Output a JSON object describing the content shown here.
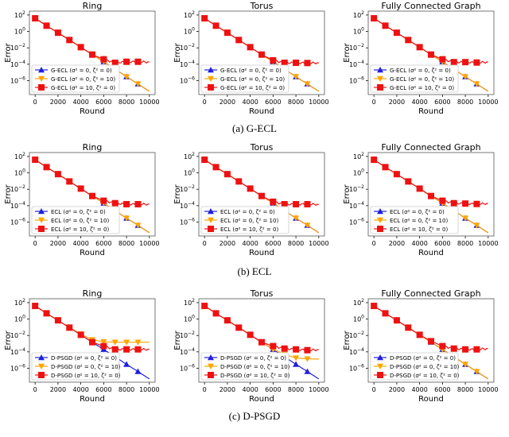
{
  "captions": [
    "(a) G-ECL",
    "(b) ECL",
    "(c) D-PSGD"
  ],
  "colors": {
    "blue": "#1f1fdd",
    "orange": "#ffa500",
    "red": "#ee1111"
  },
  "chart_data": [
    {
      "type": "line",
      "row": 0,
      "title": "Ring",
      "xlabel": "Round",
      "ylabel": "Error",
      "yscale": "log",
      "xlim": [
        -500,
        10500
      ],
      "ylim": [
        2e-08,
        300.0
      ],
      "xticks": [
        0,
        2000,
        4000,
        6000,
        8000,
        10000
      ],
      "yticks": [
        "10^2",
        "10^0",
        "10^-2",
        "10^-4",
        "10^-6"
      ],
      "legend": "lower-left",
      "x": [
        0,
        1000,
        2000,
        3000,
        4000,
        5000,
        6000,
        7000,
        8000,
        9000,
        10000
      ],
      "series": [
        {
          "name": "G-ECL (σ² = 0, ζ² = 0)",
          "color": "blue",
          "marker": "triangle-up",
          "values": [
            40,
            5,
            0.7,
            0.09,
            0.012,
            0.0015,
            0.0002,
            2.5e-05,
            3e-06,
            4e-07,
            5e-08
          ]
        },
        {
          "name": "G-ECL (σ² = 0, ζ² = 10)",
          "color": "orange",
          "marker": "triangle-down",
          "values": [
            40,
            5,
            0.7,
            0.09,
            0.012,
            0.0015,
            0.0002,
            2.5e-05,
            3e-06,
            4e-07,
            5e-08
          ]
        },
        {
          "name": "G-ECL (σ² = 10, ζ² = 0)",
          "color": "red",
          "marker": "square",
          "values": [
            40,
            5,
            0.7,
            0.09,
            0.012,
            0.0015,
            0.0004,
            0.00015,
            0.0002,
            0.0002,
            0.00018
          ]
        }
      ]
    },
    {
      "type": "line",
      "row": 0,
      "title": "Torus",
      "xlabel": "Round",
      "ylabel": "Error",
      "yscale": "log",
      "xlim": [
        -500,
        10500
      ],
      "ylim": [
        2e-08,
        300.0
      ],
      "xticks": [
        0,
        2000,
        4000,
        6000,
        8000,
        10000
      ],
      "yticks": [
        "10^2",
        "10^0",
        "10^-2",
        "10^-4",
        "10^-6"
      ],
      "legend": "lower-left",
      "x": [
        0,
        1000,
        2000,
        3000,
        4000,
        5000,
        6000,
        7000,
        8000,
        9000,
        10000
      ],
      "series": [
        {
          "name": "G-ECL (σ² = 0, ζ² = 0)",
          "color": "blue",
          "marker": "triangle-up",
          "values": [
            40,
            5,
            0.7,
            0.09,
            0.012,
            0.0015,
            0.0002,
            2.5e-05,
            3e-06,
            4e-07,
            5e-08
          ]
        },
        {
          "name": "G-ECL (σ² = 0, ζ² = 10)",
          "color": "orange",
          "marker": "triangle-down",
          "values": [
            40,
            5,
            0.7,
            0.09,
            0.012,
            0.0015,
            0.0002,
            2.5e-05,
            3e-06,
            4e-07,
            5e-08
          ]
        },
        {
          "name": "G-ECL (σ² = 10, ζ² = 0)",
          "color": "red",
          "marker": "square",
          "values": [
            40,
            5,
            0.7,
            0.09,
            0.012,
            0.0015,
            0.0003,
            0.00015,
            0.00015,
            0.00014,
            0.00014
          ]
        }
      ]
    },
    {
      "type": "line",
      "row": 0,
      "title": "Fully Connected Graph",
      "xlabel": "Round",
      "ylabel": "Error",
      "yscale": "log",
      "xlim": [
        -500,
        10500
      ],
      "ylim": [
        2e-08,
        300.0
      ],
      "xticks": [
        0,
        2000,
        4000,
        6000,
        8000,
        10000
      ],
      "yticks": [
        "10^2",
        "10^0",
        "10^-2",
        "10^-4",
        "10^-6"
      ],
      "legend": "lower-left",
      "x": [
        0,
        1000,
        2000,
        3000,
        4000,
        5000,
        6000,
        7000,
        8000,
        9000,
        10000
      ],
      "series": [
        {
          "name": "G-ECL (σ² = 0, ζ² = 0)",
          "color": "blue",
          "marker": "triangle-up",
          "values": [
            40,
            5,
            0.7,
            0.09,
            0.012,
            0.0015,
            0.0002,
            2.5e-05,
            3e-06,
            4e-07,
            5e-08
          ]
        },
        {
          "name": "G-ECL (σ² = 0, ζ² = 10)",
          "color": "orange",
          "marker": "triangle-down",
          "values": [
            40,
            5,
            0.7,
            0.09,
            0.012,
            0.0015,
            0.0002,
            2.5e-05,
            3e-06,
            4e-07,
            5e-08
          ]
        },
        {
          "name": "G-ECL (σ² = 10, ζ² = 0)",
          "color": "red",
          "marker": "square",
          "values": [
            40,
            5,
            0.7,
            0.09,
            0.012,
            0.0015,
            0.0004,
            0.00018,
            0.00018,
            0.00016,
            0.00018
          ]
        }
      ]
    },
    {
      "type": "line",
      "row": 1,
      "title": "Ring",
      "xlabel": "Round",
      "ylabel": "Error",
      "yscale": "log",
      "xlim": [
        -500,
        10500
      ],
      "ylim": [
        2e-08,
        300.0
      ],
      "xticks": [
        0,
        2000,
        4000,
        6000,
        8000,
        10000
      ],
      "yticks": [
        "10^2",
        "10^0",
        "10^-2",
        "10^-4",
        "10^-6"
      ],
      "legend": "lower-left",
      "x": [
        0,
        1000,
        2000,
        3000,
        4000,
        5000,
        6000,
        7000,
        8000,
        9000,
        10000
      ],
      "series": [
        {
          "name": "ECL (σ² = 0, ζ² = 0)",
          "color": "blue",
          "marker": "triangle-up",
          "values": [
            40,
            5,
            0.7,
            0.09,
            0.012,
            0.0015,
            0.0002,
            2.5e-05,
            3e-06,
            4e-07,
            5e-08
          ]
        },
        {
          "name": "ECL (σ² = 0, ζ² = 10)",
          "color": "orange",
          "marker": "triangle-down",
          "values": [
            40,
            5,
            0.7,
            0.09,
            0.012,
            0.0015,
            0.0002,
            2.5e-05,
            3e-06,
            4e-07,
            5e-08
          ]
        },
        {
          "name": "ECL (σ² = 10, ζ² = 0)",
          "color": "red",
          "marker": "square",
          "values": [
            40,
            5,
            0.7,
            0.09,
            0.012,
            0.0015,
            0.0004,
            0.0002,
            0.00015,
            0.00015,
            0.00015
          ]
        }
      ]
    },
    {
      "type": "line",
      "row": 1,
      "title": "Torus",
      "xlabel": "Round",
      "ylabel": "Error",
      "yscale": "log",
      "xlim": [
        -500,
        10500
      ],
      "ylim": [
        2e-08,
        300.0
      ],
      "xticks": [
        0,
        2000,
        4000,
        6000,
        8000,
        10000
      ],
      "yticks": [
        "10^2",
        "10^0",
        "10^-2",
        "10^-4",
        "10^-6"
      ],
      "legend": "lower-left",
      "x": [
        0,
        1000,
        2000,
        3000,
        4000,
        5000,
        6000,
        7000,
        8000,
        9000,
        10000
      ],
      "series": [
        {
          "name": "ECL (σ² = 0, ζ² = 0)",
          "color": "blue",
          "marker": "triangle-up",
          "values": [
            40,
            5,
            0.7,
            0.09,
            0.012,
            0.0015,
            0.0002,
            2.5e-05,
            3e-06,
            4e-07,
            5e-08
          ]
        },
        {
          "name": "ECL (σ² = 0, ζ² = 10)",
          "color": "orange",
          "marker": "triangle-down",
          "values": [
            40,
            5,
            0.7,
            0.09,
            0.012,
            0.0015,
            0.0002,
            2.5e-05,
            3e-06,
            4e-07,
            5e-08
          ]
        },
        {
          "name": "ECL (σ² = 10, ζ² = 0)",
          "color": "red",
          "marker": "square",
          "values": [
            40,
            5,
            0.7,
            0.09,
            0.012,
            0.0015,
            0.0003,
            0.00015,
            0.00015,
            0.00015,
            0.00014
          ]
        }
      ]
    },
    {
      "type": "line",
      "row": 1,
      "title": "Fully Connected Graph",
      "xlabel": "Round",
      "ylabel": "Error",
      "yscale": "log",
      "xlim": [
        -500,
        10500
      ],
      "ylim": [
        2e-08,
        300.0
      ],
      "xticks": [
        0,
        2000,
        4000,
        6000,
        8000,
        10000
      ],
      "yticks": [
        "10^2",
        "10^0",
        "10^-2",
        "10^-4",
        "10^-6"
      ],
      "legend": "lower-left",
      "x": [
        0,
        1000,
        2000,
        3000,
        4000,
        5000,
        6000,
        7000,
        8000,
        9000,
        10000
      ],
      "series": [
        {
          "name": "ECL (σ² = 0, ζ² = 0)",
          "color": "blue",
          "marker": "triangle-up",
          "values": [
            40,
            5,
            0.7,
            0.09,
            0.012,
            0.0015,
            0.0002,
            2.5e-05,
            3e-06,
            4e-07,
            5e-08
          ]
        },
        {
          "name": "ECL (σ² = 0, ζ² = 10)",
          "color": "orange",
          "marker": "triangle-down",
          "values": [
            40,
            5,
            0.7,
            0.09,
            0.012,
            0.0015,
            0.0002,
            2.5e-05,
            3e-06,
            4e-07,
            5e-08
          ]
        },
        {
          "name": "ECL (σ² = 10, ζ² = 0)",
          "color": "red",
          "marker": "square",
          "values": [
            40,
            5,
            0.7,
            0.09,
            0.012,
            0.0015,
            0.0004,
            0.0002,
            0.00018,
            0.00016,
            0.00018
          ]
        }
      ]
    },
    {
      "type": "line",
      "row": 2,
      "title": "Ring",
      "xlabel": "Round",
      "ylabel": "Error",
      "yscale": "log",
      "xlim": [
        -500,
        10500
      ],
      "ylim": [
        2e-08,
        300.0
      ],
      "xticks": [
        0,
        2000,
        4000,
        6000,
        8000,
        10000
      ],
      "yticks": [
        "10^2",
        "10^0",
        "10^-2",
        "10^-4",
        "10^-6"
      ],
      "legend": "lower-left",
      "x": [
        0,
        1000,
        2000,
        3000,
        4000,
        5000,
        6000,
        7000,
        8000,
        9000,
        10000
      ],
      "series": [
        {
          "name": "D-PSGD (σ² = 0, ζ² = 0)",
          "color": "blue",
          "marker": "triangle-up",
          "values": [
            40,
            5,
            0.7,
            0.09,
            0.012,
            0.0015,
            0.0002,
            2.5e-05,
            3e-06,
            4e-07,
            5e-08
          ]
        },
        {
          "name": "D-PSGD (σ² = 0, ζ² = 10)",
          "color": "orange",
          "marker": "triangle-down",
          "values": [
            40,
            5,
            0.7,
            0.09,
            0.015,
            0.003,
            0.0017,
            0.0015,
            0.0015,
            0.0015,
            0.0015
          ]
        },
        {
          "name": "D-PSGD (σ² = 10, ζ² = 0)",
          "color": "red",
          "marker": "square",
          "values": [
            40,
            5,
            0.7,
            0.09,
            0.012,
            0.0015,
            0.0005,
            0.0002,
            0.0002,
            0.0002,
            0.0002
          ]
        }
      ]
    },
    {
      "type": "line",
      "row": 2,
      "title": "Torus",
      "xlabel": "Round",
      "ylabel": "Error",
      "yscale": "log",
      "xlim": [
        -500,
        10500
      ],
      "ylim": [
        2e-08,
        300.0
      ],
      "xticks": [
        0,
        2000,
        4000,
        6000,
        8000,
        10000
      ],
      "yticks": [
        "10^2",
        "10^0",
        "10^-2",
        "10^-4",
        "10^-6"
      ],
      "legend": "lower-left",
      "x": [
        0,
        1000,
        2000,
        3000,
        4000,
        5000,
        6000,
        7000,
        8000,
        9000,
        10000
      ],
      "series": [
        {
          "name": "D-PSGD (σ² = 0, ζ² = 0)",
          "color": "blue",
          "marker": "triangle-up",
          "values": [
            40,
            5,
            0.7,
            0.09,
            0.012,
            0.0015,
            0.0002,
            2.5e-05,
            3e-06,
            4e-07,
            5e-08
          ]
        },
        {
          "name": "D-PSGD (σ² = 0, ζ² = 10)",
          "color": "orange",
          "marker": "triangle-down",
          "values": [
            40,
            5,
            0.7,
            0.09,
            0.012,
            0.0015,
            0.0002,
            5e-05,
            1.8e-05,
            1.4e-05,
            1.3e-05
          ]
        },
        {
          "name": "D-PSGD (σ² = 10, ζ² = 0)",
          "color": "red",
          "marker": "square",
          "values": [
            40,
            5,
            0.7,
            0.09,
            0.012,
            0.0015,
            0.0005,
            0.00025,
            0.0002,
            0.00016,
            0.00018
          ]
        }
      ]
    },
    {
      "type": "line",
      "row": 2,
      "title": "Fully Connected Graph",
      "xlabel": "Round",
      "ylabel": "Error",
      "yscale": "log",
      "xlim": [
        -500,
        10500
      ],
      "ylim": [
        2e-08,
        300.0
      ],
      "xticks": [
        0,
        2000,
        4000,
        6000,
        8000,
        10000
      ],
      "yticks": [
        "10^2",
        "10^0",
        "10^-2",
        "10^-4",
        "10^-6"
      ],
      "legend": "lower-left",
      "x": [
        0,
        1000,
        2000,
        3000,
        4000,
        5000,
        6000,
        7000,
        8000,
        9000,
        10000
      ],
      "series": [
        {
          "name": "D-PSGD (σ² = 0, ζ² = 0)",
          "color": "blue",
          "marker": "triangle-up",
          "values": [
            40,
            5,
            0.7,
            0.09,
            0.012,
            0.0015,
            0.0002,
            2.5e-05,
            3e-06,
            4e-07,
            5e-08
          ]
        },
        {
          "name": "D-PSGD (σ² = 0, ζ² = 10)",
          "color": "orange",
          "marker": "triangle-down",
          "values": [
            40,
            5,
            0.7,
            0.09,
            0.012,
            0.0015,
            0.0002,
            2.5e-05,
            3e-06,
            4e-07,
            5e-08
          ]
        },
        {
          "name": "D-PSGD (σ² = 10, ζ² = 0)",
          "color": "red",
          "marker": "square",
          "values": [
            40,
            5,
            0.7,
            0.09,
            0.012,
            0.002,
            0.0005,
            0.00025,
            0.0002,
            0.0002,
            0.00025
          ]
        }
      ]
    }
  ]
}
